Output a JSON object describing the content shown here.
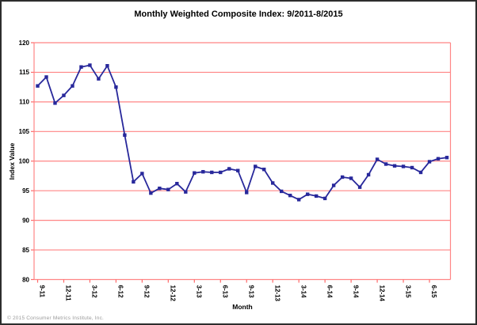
{
  "window": {
    "footer": "© 2015 Consumer Metrics Institute, Inc."
  },
  "chart_data": {
    "type": "line",
    "title": "Monthly Weighted Composite Index: 9/2011-8/2015",
    "xlabel": "Month",
    "ylabel": "Index Value",
    "ylim": [
      80,
      120
    ],
    "ytick_step": 5,
    "grid": "horizontal-red-gridlines",
    "legend_position": "none",
    "x_tick_every": 3,
    "x_tick_rotation_deg": 90,
    "x": [
      "9-11",
      "10-11",
      "11-11",
      "12-11",
      "1-12",
      "2-12",
      "3-12",
      "4-12",
      "5-12",
      "6-12",
      "7-12",
      "8-12",
      "9-12",
      "10-12",
      "11-12",
      "12-12",
      "1-13",
      "2-13",
      "3-13",
      "4-13",
      "5-13",
      "6-13",
      "7-13",
      "8-13",
      "9-13",
      "10-13",
      "11-13",
      "12-13",
      "1-14",
      "2-14",
      "3-14",
      "4-14",
      "5-14",
      "6-14",
      "7-14",
      "8-14",
      "9-14",
      "10-14",
      "11-14",
      "12-14",
      "1-15",
      "2-15",
      "3-15",
      "4-15",
      "5-15",
      "6-15",
      "7-15",
      "8-15"
    ],
    "series": [
      {
        "name": "Monthly Weighted Composite Index",
        "marker": "square",
        "values": [
          112.7,
          114.2,
          109.8,
          111.1,
          112.7,
          115.9,
          116.2,
          113.9,
          116.1,
          112.5,
          104.4,
          96.5,
          97.9,
          94.6,
          95.4,
          95.2,
          96.2,
          94.8,
          98.0,
          98.2,
          98.1,
          98.1,
          98.7,
          98.4,
          94.7,
          99.1,
          98.6,
          96.3,
          94.9,
          94.2,
          93.5,
          94.4,
          94.1,
          93.7,
          95.9,
          97.3,
          97.1,
          95.6,
          97.7,
          100.3,
          99.5,
          99.2,
          99.1,
          98.9,
          98.1,
          99.9,
          100.4,
          100.6
        ]
      }
    ],
    "colors": {
      "line": "#28289b",
      "marker": "#28289b",
      "gridline": "#ff8585",
      "axis_frame": "#ff8585",
      "tick": "#ff6a6a",
      "text": "#000000",
      "footer_text": "#9a9a9a",
      "background": "#ffffff"
    }
  }
}
